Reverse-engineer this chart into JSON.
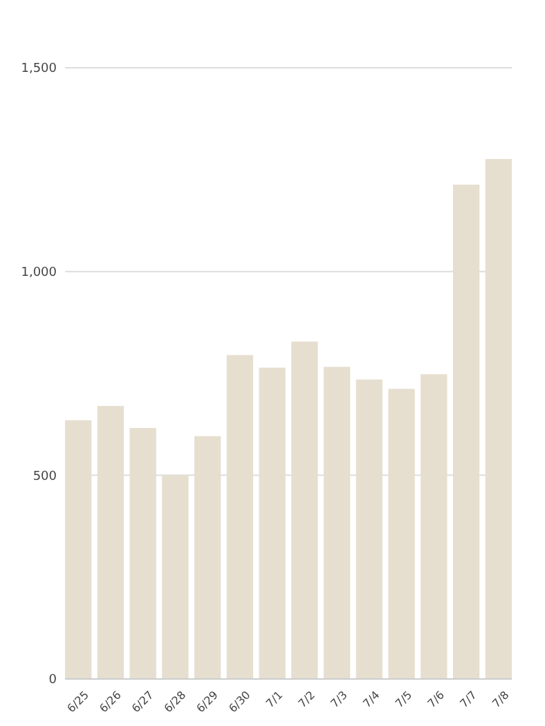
{
  "chart_data": {
    "type": "bar",
    "categories": [
      "6/25",
      "6/26",
      "6/27",
      "6/28",
      "6/29",
      "6/30",
      "7/1",
      "7/2",
      "7/3",
      "7/4",
      "7/5",
      "7/6",
      "7/7",
      "7/8"
    ],
    "values": [
      635,
      670,
      616,
      500,
      596,
      795,
      764,
      828,
      766,
      735,
      712,
      748,
      1213,
      1276
    ],
    "color": "#e6dfd0",
    "ylim": [
      0,
      1500
    ],
    "yticks": [
      {
        "value": 0,
        "label": "0"
      },
      {
        "value": 500,
        "label": "500"
      },
      {
        "value": 1000,
        "label": "1,000"
      },
      {
        "value": 1500,
        "label": "1,500"
      }
    ],
    "grid": "y"
  }
}
